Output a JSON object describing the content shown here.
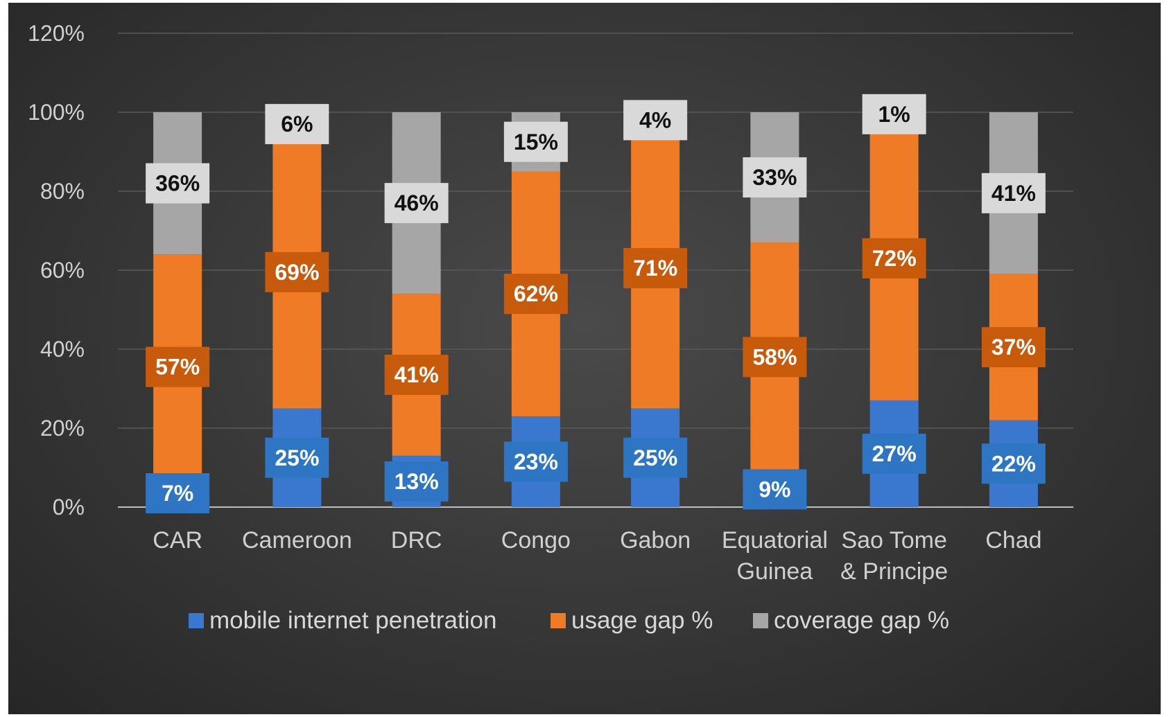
{
  "chart_data": {
    "type": "bar",
    "stacked": true,
    "categories": [
      [
        "CAR"
      ],
      [
        "Cameroon"
      ],
      [
        "DRC"
      ],
      [
        "Congo"
      ],
      [
        "Gabon"
      ],
      [
        "Equatorial",
        "Guinea"
      ],
      [
        "Sao Tome",
        "& Principe"
      ],
      [
        "Chad"
      ]
    ],
    "series": [
      {
        "name": "mobile internet penetration",
        "color": "#3a78d0",
        "label_bg": "#2e75c4",
        "label_color": "#ffffff",
        "values": [
          7,
          25,
          13,
          23,
          25,
          9,
          27,
          22
        ],
        "labels": [
          "7%",
          "25%",
          "13%",
          "23%",
          "25%",
          "9%",
          "27%",
          "22%"
        ]
      },
      {
        "name": "usage gap %",
        "color": "#f07b26",
        "label_bg": "#c85a0c",
        "label_color": "#ffffff",
        "values": [
          57,
          69,
          41,
          62,
          71,
          58,
          72,
          37
        ],
        "labels": [
          "57%",
          "69%",
          "41%",
          "62%",
          "71%",
          "58%",
          "72%",
          "37%"
        ]
      },
      {
        "name": "coverage gap %",
        "color": "#a6a6a6",
        "label_bg": "#d9d9d9",
        "label_color": "#111111",
        "values": [
          36,
          6,
          46,
          15,
          4,
          33,
          1,
          41
        ],
        "labels": [
          "36%",
          "6%",
          "46%",
          "15%",
          "4%",
          "33%",
          "1%",
          "41%"
        ]
      }
    ],
    "yticks": [
      "0%",
      "20%",
      "40%",
      "60%",
      "80%",
      "100%",
      "120%"
    ],
    "ylim": [
      0,
      120
    ],
    "grid": true,
    "legend_position": "bottom",
    "title": "",
    "xlabel": "",
    "ylabel": ""
  }
}
